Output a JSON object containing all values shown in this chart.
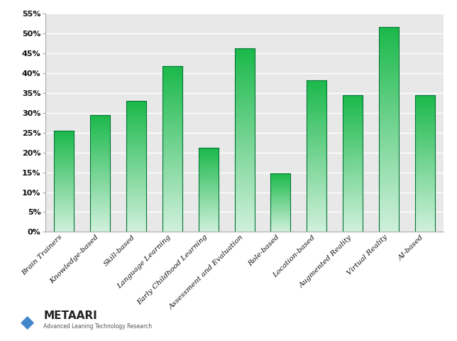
{
  "categories": [
    "Brain Trainers",
    "Knowledge-based",
    "Skill-based",
    "Language Learning",
    "Early Childhood Learning",
    "Assessment and Evaluation",
    "Role-based",
    "Location-based",
    "Augmented Reality",
    "Virtual Reality",
    "AI-based"
  ],
  "values": [
    25.5,
    29.5,
    33.0,
    41.7,
    21.2,
    46.2,
    14.8,
    38.2,
    34.5,
    51.7,
    34.5
  ],
  "bar_color_top": "#1ab84a",
  "bar_color_bottom": "#d0f0dc",
  "background_color": "#ffffff",
  "plot_bg_color": "#e8e8e8",
  "grid_color": "#ffffff",
  "ylim": [
    0,
    55
  ],
  "yticks": [
    0,
    5,
    10,
    15,
    20,
    25,
    30,
    35,
    40,
    45,
    50,
    55
  ],
  "bar_width": 0.55,
  "logo_text": "METAARI",
  "logo_subtext": "Advanced Leaning Technology Research"
}
